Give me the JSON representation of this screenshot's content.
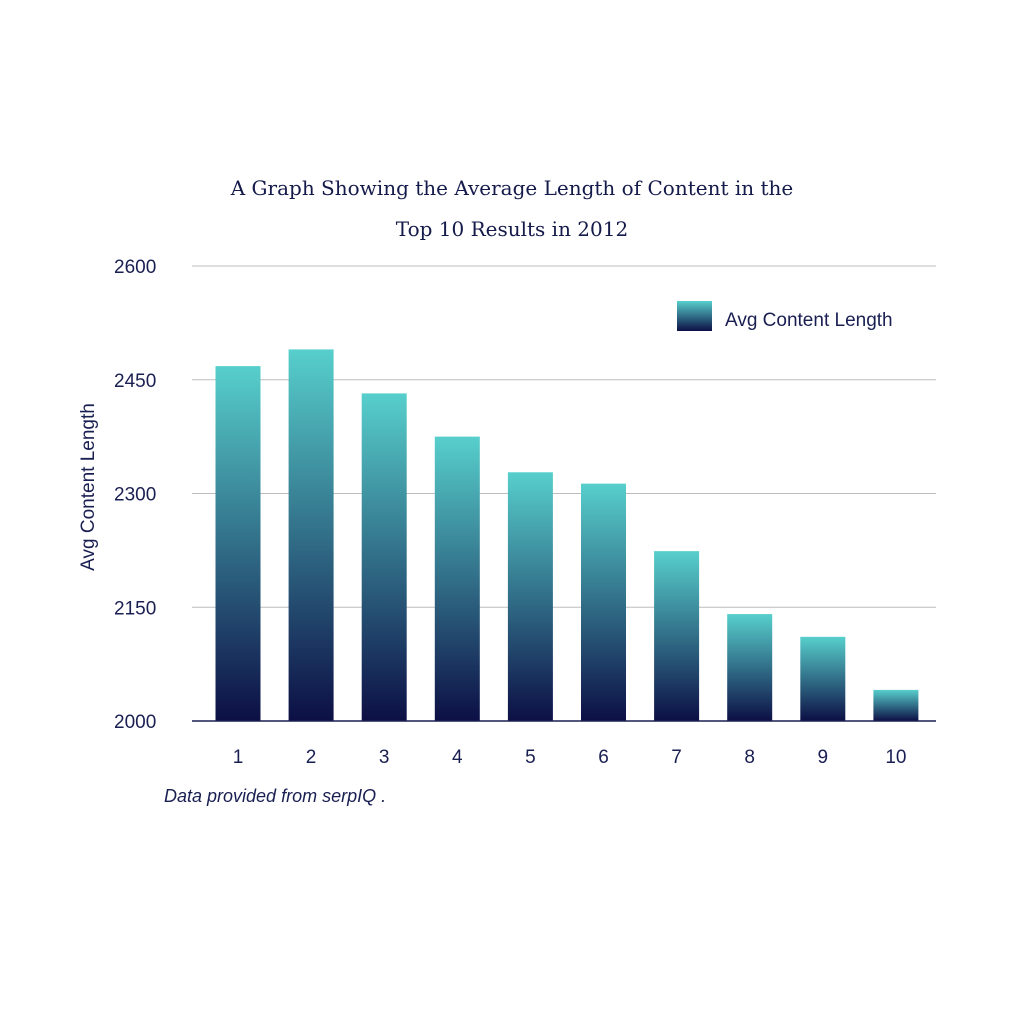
{
  "chart_data": {
    "type": "bar",
    "title_lines": [
      "A Graph Showing the Average Length of Content in the",
      "Top 10 Results in 2012"
    ],
    "categories": [
      "1",
      "2",
      "3",
      "4",
      "5",
      "6",
      "7",
      "8",
      "9",
      "10"
    ],
    "series": [
      {
        "name": "Avg Content Length",
        "values": [
          2468,
          2490,
          2432,
          2375,
          2328,
          2313,
          2224,
          2141,
          2111,
          2041
        ]
      }
    ],
    "ylabel": "Avg Content Length",
    "xlabel": "",
    "ylim": [
      2000,
      2600
    ],
    "yticks": [
      2000,
      2150,
      2300,
      2450,
      2600
    ],
    "grid": true,
    "legend_position": "top-right",
    "colors": {
      "bar_top": "#57cfcc",
      "bar_bottom": "#0c0f45",
      "axis": "#1a1f52",
      "grid": "#bdbdbd"
    }
  },
  "footnote": "Data provided from serpIQ ."
}
